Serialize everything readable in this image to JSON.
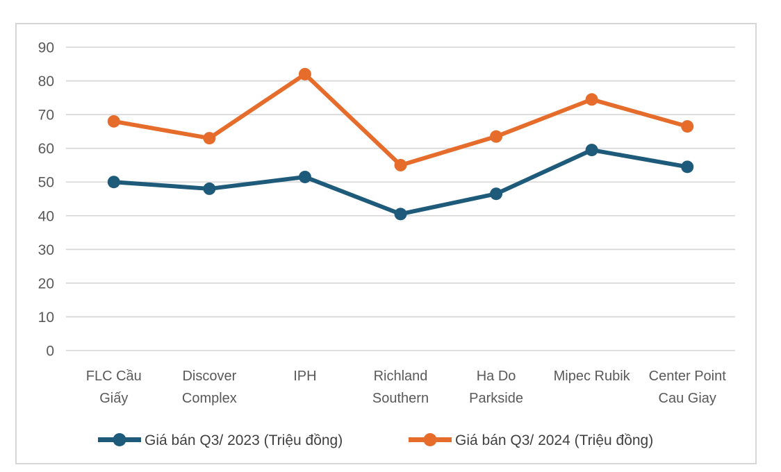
{
  "chart_data": {
    "type": "line",
    "title": "",
    "xlabel": "",
    "ylabel": "",
    "categories": [
      "FLC Cầu Giấy",
      "Discover Complex",
      "IPH",
      "Richland Southern",
      "Ha Do Parkside",
      "Mipec Rubik",
      "Center Point Cau Giay"
    ],
    "category_label_lines": [
      [
        "FLC Cầu",
        "Giấy"
      ],
      [
        "Discover",
        "Complex"
      ],
      [
        "IPH"
      ],
      [
        "Richland",
        "Southern"
      ],
      [
        "Ha Do",
        "Parkside"
      ],
      [
        "Mipec Rubik"
      ],
      [
        "Center Point",
        "Cau Giay"
      ]
    ],
    "series": [
      {
        "name": "Giá bán Q3/ 2023 (Triệu đồng)",
        "color": "#1E5B7B",
        "values": [
          50,
          48,
          51.5,
          40.5,
          46.5,
          59.5,
          54.5
        ]
      },
      {
        "name": "Giá bán Q3/ 2024 (Triệu đồng)",
        "color": "#E66C2C",
        "values": [
          68,
          63,
          82,
          55,
          63.5,
          74.5,
          66.5
        ]
      }
    ],
    "ylim": [
      0,
      90
    ],
    "y_tick_step": 10,
    "y_tick_labels": [
      "0",
      "10",
      "20",
      "30",
      "40",
      "50",
      "60",
      "70",
      "80",
      "90"
    ],
    "grid": "horizontal",
    "legend_position": "bottom",
    "colors": {
      "gridline": "#D9D9D9",
      "axis_text": "#595959",
      "legend_text": "#404040",
      "card_border": "#D6D6D6",
      "background": "#FFFFFF"
    }
  }
}
